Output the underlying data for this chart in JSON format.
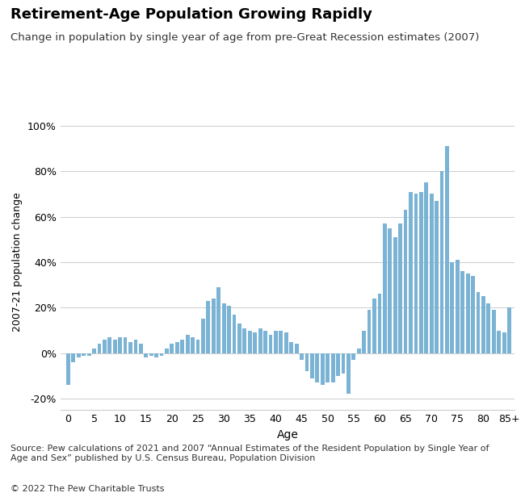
{
  "title": "Retirement-Age Population Growing Rapidly",
  "subtitle": "Change in population by single year of age from pre-Great Recession estimates (2007)",
  "xlabel": "Age",
  "ylabel": "2007-21 population change",
  "source_text": "Source: Pew calculations of 2021 and 2007 “Annual Estimates of the Resident Population by Single Year of\nAge and Sex” published by U.S. Census Bureau, Population Division",
  "copyright_text": "© 2022 The Pew Charitable Trusts",
  "ylim": [
    -0.25,
    1.05
  ],
  "yticks": [
    -0.2,
    0.0,
    0.2,
    0.4,
    0.6,
    0.8,
    1.0
  ],
  "ytick_labels": [
    "-20%",
    "0%",
    "20%",
    "40%",
    "60%",
    "80%",
    "100%"
  ],
  "xtick_positions": [
    0,
    5,
    10,
    15,
    20,
    25,
    30,
    35,
    40,
    45,
    50,
    55,
    60,
    65,
    70,
    75,
    80,
    85
  ],
  "xtick_labels": [
    "0",
    "5",
    "10",
    "15",
    "20",
    "25",
    "30",
    "35",
    "40",
    "45",
    "50",
    "55",
    "60",
    "65",
    "70",
    "75",
    "80",
    "85+"
  ],
  "bar_color": "#7ab3d4",
  "bar_values": [
    -0.14,
    -0.04,
    -0.02,
    -0.01,
    -0.01,
    0.02,
    0.04,
    0.06,
    0.07,
    0.06,
    0.07,
    0.07,
    0.05,
    0.06,
    0.04,
    -0.02,
    -0.01,
    -0.02,
    -0.01,
    0.02,
    0.04,
    0.05,
    0.06,
    0.08,
    0.07,
    0.06,
    0.15,
    0.23,
    0.24,
    0.29,
    0.22,
    0.21,
    0.17,
    0.13,
    0.11,
    0.1,
    0.09,
    0.11,
    0.1,
    0.08,
    0.1,
    0.1,
    0.09,
    0.05,
    0.04,
    -0.03,
    -0.08,
    -0.11,
    -0.13,
    -0.14,
    -0.13,
    -0.13,
    -0.1,
    -0.09,
    -0.18,
    -0.03,
    0.02,
    0.1,
    0.19,
    0.24,
    0.26,
    0.57,
    0.55,
    0.51,
    0.57,
    0.63,
    0.71,
    0.7,
    0.71,
    0.75,
    0.7,
    0.67,
    0.8,
    0.91,
    0.4,
    0.41,
    0.36,
    0.35,
    0.34,
    0.27,
    0.25,
    0.22,
    0.19,
    0.1,
    0.09,
    0.2
  ]
}
